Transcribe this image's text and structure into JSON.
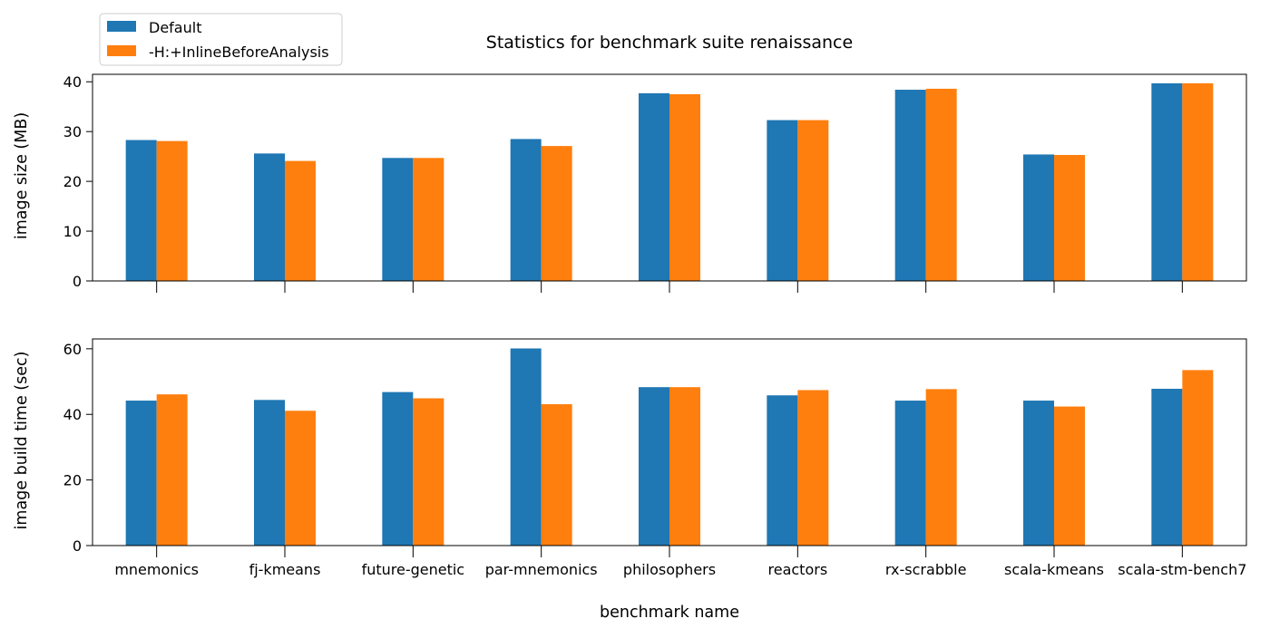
{
  "chart_data": {
    "type": "bar",
    "title": "Statistics for benchmark suite renaissance",
    "xlabel": "benchmark name",
    "categories": [
      "mnemonics",
      "fj-kmeans",
      "future-genetic",
      "par-mnemonics",
      "philosophers",
      "reactors",
      "rx-scrabble",
      "scala-kmeans",
      "scala-stm-bench7"
    ],
    "legend": {
      "placement": "top-left",
      "entries": [
        {
          "label": "Default",
          "color": "#1f77b4"
        },
        {
          "label": "-H:+InlineBeforeAnalysis",
          "color": "#ff7f0e"
        }
      ]
    },
    "subplots": [
      {
        "ylabel": "image size (MB)",
        "ylim": [
          0,
          41.5
        ],
        "yticks": [
          0,
          10,
          20,
          30,
          40
        ],
        "series": [
          {
            "name": "Default",
            "color": "#1f77b4",
            "values": [
              28.3,
              25.6,
              24.7,
              28.5,
              37.7,
              32.3,
              38.4,
              25.4,
              39.7
            ]
          },
          {
            "name": "-H:+InlineBeforeAnalysis",
            "color": "#ff7f0e",
            "values": [
              28.1,
              24.1,
              24.7,
              27.1,
              37.5,
              32.3,
              38.6,
              25.3,
              39.7
            ]
          }
        ]
      },
      {
        "ylabel": "image build time (sec)",
        "ylim": [
          0,
          63
        ],
        "yticks": [
          0,
          20,
          40,
          60
        ],
        "series": [
          {
            "name": "Default",
            "color": "#1f77b4",
            "values": [
              44.2,
              44.4,
              46.8,
              60.1,
              48.3,
              45.8,
              44.2,
              44.2,
              47.8
            ]
          },
          {
            "name": "-H:+InlineBeforeAnalysis",
            "color": "#ff7f0e",
            "values": [
              46.1,
              41.1,
              44.9,
              43.1,
              48.3,
              47.4,
              47.7,
              42.4,
              53.5
            ]
          }
        ]
      }
    ]
  }
}
